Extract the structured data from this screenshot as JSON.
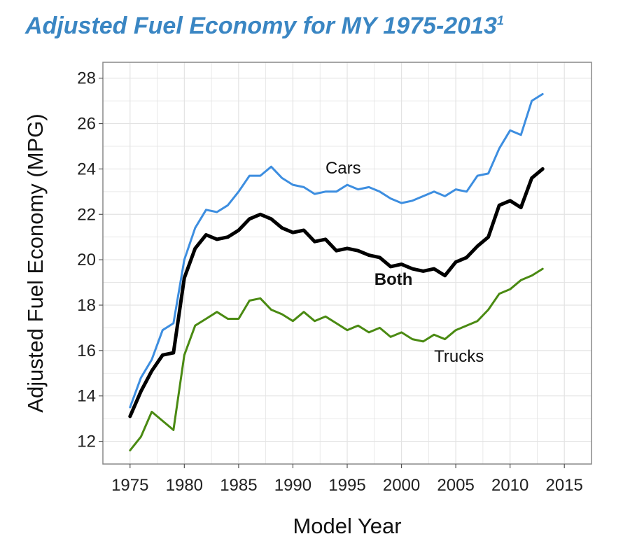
{
  "title": {
    "text": "Adjusted Fuel Economy for MY 1975-2013",
    "footnote": "1"
  },
  "colors": {
    "title": "#3a86c3",
    "cars": "#3d8ee0",
    "both": "#000000",
    "trucks": "#4a8a12",
    "grid": "#e3e3e3",
    "frame": "#888888"
  },
  "chart_data": {
    "type": "line",
    "xlabel": "Model Year",
    "ylabel": "Adjusted Fuel Economy (MPG)",
    "xlim": [
      1972.5,
      2017.5
    ],
    "ylim": [
      11,
      28.7
    ],
    "xticks": [
      1975,
      1980,
      1985,
      1990,
      1995,
      2000,
      2005,
      2010,
      2015
    ],
    "yticks": [
      12,
      14,
      16,
      18,
      20,
      22,
      24,
      26,
      28
    ],
    "grid": true,
    "legend": "none",
    "x": [
      1975,
      1976,
      1977,
      1978,
      1979,
      1980,
      1981,
      1982,
      1983,
      1984,
      1985,
      1986,
      1987,
      1988,
      1989,
      1990,
      1991,
      1992,
      1993,
      1994,
      1995,
      1996,
      1997,
      1998,
      1999,
      2000,
      2001,
      2002,
      2003,
      2004,
      2005,
      2006,
      2007,
      2008,
      2009,
      2010,
      2011,
      2012,
      2013
    ],
    "series": [
      {
        "name": "Cars",
        "color": "#3d8ee0",
        "label_x": 1993,
        "label_y": 23.8,
        "values": [
          13.5,
          14.8,
          15.6,
          16.9,
          17.2,
          20.0,
          21.4,
          22.2,
          22.1,
          22.4,
          23.0,
          23.7,
          23.7,
          24.1,
          23.6,
          23.3,
          23.2,
          22.9,
          23.0,
          23.0,
          23.3,
          23.1,
          23.2,
          23.0,
          22.7,
          22.5,
          22.6,
          22.8,
          23.0,
          22.8,
          23.1,
          23.0,
          23.7,
          23.8,
          24.9,
          25.7,
          25.5,
          27.0,
          27.3
        ]
      },
      {
        "name": "Both",
        "color": "#000000",
        "label_x": 1997.5,
        "label_y": 18.9,
        "values": [
          13.1,
          14.2,
          15.1,
          15.8,
          15.9,
          19.2,
          20.5,
          21.1,
          20.9,
          21.0,
          21.3,
          21.8,
          22.0,
          21.8,
          21.4,
          21.2,
          21.3,
          20.8,
          20.9,
          20.4,
          20.5,
          20.4,
          20.2,
          20.1,
          19.7,
          19.8,
          19.6,
          19.5,
          19.6,
          19.3,
          19.9,
          20.1,
          20.6,
          21.0,
          22.4,
          22.6,
          22.3,
          23.6,
          24.0
        ]
      },
      {
        "name": "Trucks",
        "color": "#4a8a12",
        "label_x": 2003,
        "label_y": 15.5,
        "values": [
          11.6,
          12.2,
          13.3,
          12.9,
          12.5,
          15.8,
          17.1,
          17.4,
          17.7,
          17.4,
          17.4,
          18.2,
          18.3,
          17.8,
          17.6,
          17.3,
          17.7,
          17.3,
          17.5,
          17.2,
          16.9,
          17.1,
          16.8,
          17.0,
          16.6,
          16.8,
          16.5,
          16.4,
          16.7,
          16.5,
          16.9,
          17.1,
          17.3,
          17.8,
          18.5,
          18.7,
          19.1,
          19.3,
          19.6
        ]
      }
    ]
  }
}
